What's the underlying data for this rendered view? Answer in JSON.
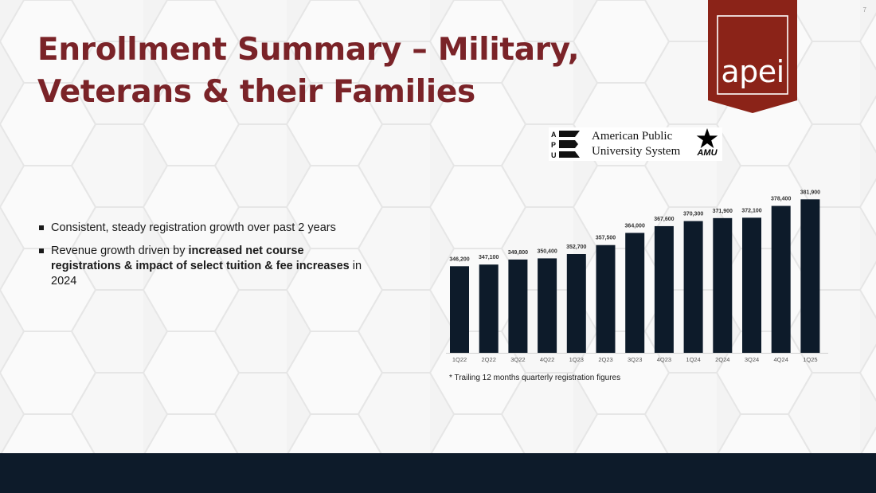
{
  "slide": {
    "page_number": "7",
    "title_lines": [
      "Enrollment Summary – Military,",
      "Veterans & their Families"
    ]
  },
  "logos": {
    "company": "apei",
    "apus_line1": "American Public",
    "apus_line2": "University System",
    "apu_letters": [
      "A",
      "P",
      "U"
    ],
    "amu": "AMU"
  },
  "bullets": {
    "b1": "Consistent, steady registration growth over past 2 years",
    "b2_pre": "Revenue growth driven by ",
    "b2_bold": "increased net course registrations & impact of select tuition & fee increases",
    "b2_post": " in 2024"
  },
  "chart_data": {
    "type": "bar",
    "title": "",
    "categories": [
      "1Q22",
      "2Q22",
      "3Q22",
      "4Q22",
      "1Q23",
      "2Q23",
      "3Q23",
      "4Q23",
      "1Q24",
      "2Q24",
      "3Q24",
      "4Q24",
      "1Q25"
    ],
    "values": [
      346200,
      347100,
      349800,
      350400,
      352700,
      357500,
      364000,
      367600,
      370300,
      371900,
      372100,
      378400,
      381900
    ],
    "value_labels": [
      "346,200",
      "347,100",
      "349,800",
      "350,400",
      "352,700",
      "357,500",
      "364,000",
      "367,600",
      "370,300",
      "371,900",
      "372,100",
      "378,400",
      "381,900"
    ],
    "ylim": [
      300000,
      385000
    ],
    "legend": "none",
    "grid": false
  },
  "colors": {
    "bar": "#0d1b2a",
    "title": "#7a2328",
    "logo_banner": "#8b2318",
    "footer": "#0d1b2a"
  },
  "footnote": "* Trailing 12 months quarterly registration figures"
}
